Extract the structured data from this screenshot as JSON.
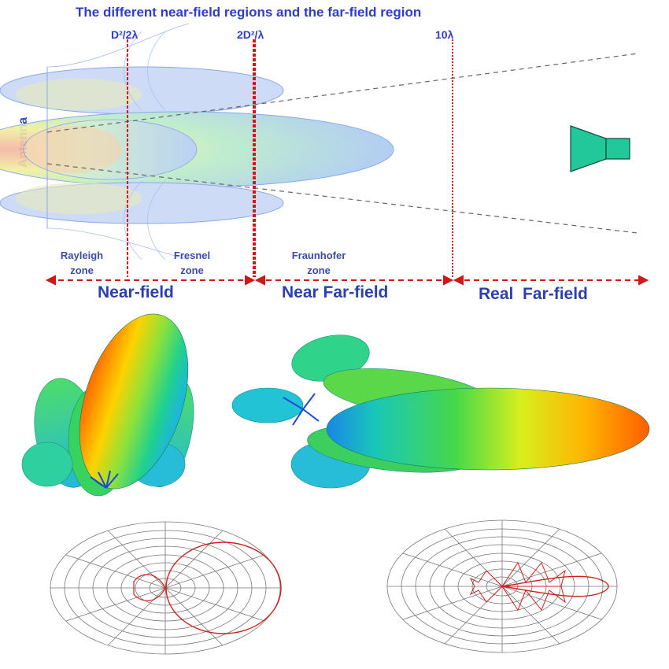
{
  "title": "The different near-field regions and the far-field region",
  "side_label": "Antenna",
  "boundaries": [
    "D²/2λ",
    "2D²/λ",
    "10λ"
  ],
  "zones": [
    {
      "line1": "Rayleigh",
      "line2": "zone"
    },
    {
      "line1": "Fresnel",
      "line2": "zone"
    },
    {
      "line1": "Fraunhofer",
      "line2": "zone"
    }
  ],
  "regions": [
    "Near-field",
    "Near Far-field",
    "Real  Far-field"
  ],
  "colors": {
    "boundary": "#d01818",
    "title": "#2e3cc8",
    "horn": "#22c79a",
    "polar_trace": "#d02020"
  },
  "icons": [
    "horn-antenna-icon",
    "radiation-pattern-3d-icon",
    "polar-plot-icon"
  ]
}
